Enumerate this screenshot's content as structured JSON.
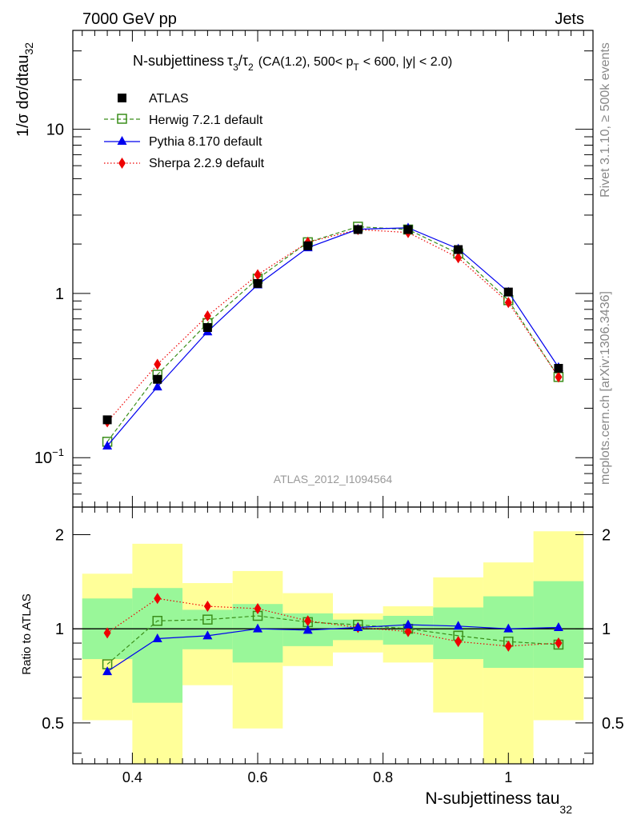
{
  "header": {
    "left": "7000 GeV pp",
    "right": "Jets"
  },
  "title": {
    "main": "N-subjettiness",
    "tau3": "τ",
    "sub3": "3",
    "slash": "/",
    "tau2": "τ",
    "sub2": "2",
    "cuts_a": "(CA(1.2), 500< p",
    "cuts_pt_sub": "T",
    "cuts_b": "< 600, |y| < 2.0)"
  },
  "side_labels": {
    "rivet": "Rivet 3.1.10, ≥ 500k events",
    "mcplots": "mcplots.cern.ch [arXiv:1306.3436]"
  },
  "analysis_id": "ATLAS_2012_I1094564",
  "axes": {
    "ylabel_main": "1/σ dσ/dtau",
    "ylabel_main_sub": "32",
    "ylabel_ratio": "Ratio to ATLAS",
    "xlabel": "N-subjettiness tau",
    "xlabel_sub": "32",
    "main_ticks": [
      {
        "label": "10",
        "exp": "−1"
      },
      {
        "label": "1",
        "exp": ""
      },
      {
        "label": "10",
        "exp": ""
      }
    ],
    "ratio_ticks": [
      "0.5",
      "1",
      "2"
    ],
    "x_ticks": [
      "0.4",
      "0.6",
      "0.8",
      "1"
    ]
  },
  "legend": [
    {
      "label": "ATLAS"
    },
    {
      "label": "Herwig 7.2.1 default"
    },
    {
      "label": "Pythia 8.170 default"
    },
    {
      "label": "Sherpa 2.2.9 default"
    }
  ],
  "chart_data": {
    "type": "line",
    "title": "N-subjettiness τ3/τ2 (CA(1.2), 500< pT < 600, |y| < 2.0)",
    "xlabel": "N-subjettiness tau32",
    "ylabel": "1/σ dσ/dtau32",
    "xlim": [
      0.305,
      1.135
    ],
    "ylim": [
      0.05,
      40
    ],
    "yscale": "log",
    "ratio_ylim": [
      0.37,
      2.45
    ],
    "bin_edges": [
      0.32,
      0.4,
      0.48,
      0.56,
      0.64,
      0.72,
      0.8,
      0.88,
      0.96,
      1.04,
      1.12
    ],
    "x": [
      0.36,
      0.44,
      0.52,
      0.6,
      0.68,
      0.76,
      0.84,
      0.92,
      1.0,
      1.08
    ],
    "series": [
      {
        "name": "ATLAS",
        "color": "#000000",
        "marker": "square-filled",
        "values": [
          0.17,
          0.3,
          0.62,
          1.15,
          1.95,
          2.45,
          2.45,
          1.85,
          1.02,
          0.35
        ]
      },
      {
        "name": "Herwig 7.2.1 default",
        "color": "#3a8e1a",
        "marker": "square-open",
        "dash": "dashed",
        "values": [
          0.125,
          0.32,
          0.66,
          1.23,
          2.05,
          2.55,
          2.45,
          1.75,
          0.91,
          0.31
        ]
      },
      {
        "name": "Pythia 8.170 default",
        "color": "#0000ee",
        "marker": "triangle",
        "dash": "solid",
        "values": [
          0.118,
          0.27,
          0.585,
          1.13,
          1.9,
          2.46,
          2.51,
          1.87,
          1.02,
          0.355
        ]
      },
      {
        "name": "Sherpa 2.2.9 default",
        "color": "#ee0000",
        "marker": "diamond",
        "dash": "dotted",
        "values": [
          0.165,
          0.37,
          0.73,
          1.3,
          2.05,
          2.45,
          2.35,
          1.65,
          0.88,
          0.31
        ]
      }
    ],
    "ratio": {
      "band_color_inner": "#99f799",
      "band_color_outer": "#ffff99",
      "band_inner": [
        [
          0.8,
          1.25
        ],
        [
          0.58,
          1.35
        ],
        [
          0.86,
          1.15
        ],
        [
          0.78,
          1.2
        ],
        [
          0.88,
          1.12
        ],
        [
          0.92,
          1.07
        ],
        [
          0.89,
          1.1
        ],
        [
          0.8,
          1.17
        ],
        [
          0.75,
          1.27
        ],
        [
          0.75,
          1.42
        ]
      ],
      "band_outer": [
        [
          0.51,
          1.5
        ],
        [
          0.37,
          1.87
        ],
        [
          0.66,
          1.4
        ],
        [
          0.48,
          1.53
        ],
        [
          0.76,
          1.3
        ],
        [
          0.84,
          1.12
        ],
        [
          0.78,
          1.18
        ],
        [
          0.54,
          1.46
        ],
        [
          0.37,
          1.63
        ],
        [
          0.51,
          2.05
        ]
      ],
      "series": [
        {
          "name": "Herwig 7.2.1 default",
          "values": [
            0.77,
            1.06,
            1.07,
            1.1,
            1.05,
            1.03,
            1.0,
            0.95,
            0.91,
            0.89
          ]
        },
        {
          "name": "Pythia 8.170 default",
          "values": [
            0.73,
            0.93,
            0.95,
            1.0,
            0.99,
            1.01,
            1.03,
            1.02,
            1.0,
            1.01
          ]
        },
        {
          "name": "Sherpa 2.2.9 default",
          "values": [
            0.97,
            1.25,
            1.18,
            1.16,
            1.06,
            1.01,
            0.98,
            0.91,
            0.88,
            0.9
          ]
        }
      ]
    }
  }
}
